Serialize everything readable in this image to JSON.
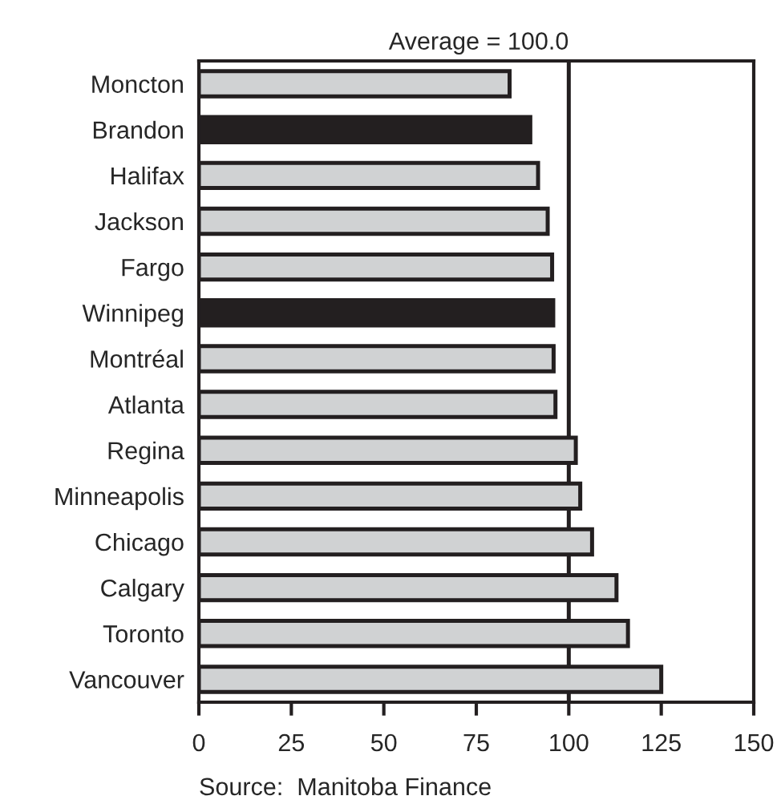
{
  "chart_data": {
    "type": "bar",
    "orientation": "horizontal",
    "categories": [
      "Moncton",
      "Brandon",
      "Halifax",
      "Jackson",
      "Fargo",
      "Winnipeg",
      "Montréal",
      "Atlanta",
      "Regina",
      "Minneapolis",
      "Chicago",
      "Calgary",
      "Toronto",
      "Vancouver"
    ],
    "values": [
      84,
      89.6,
      91.7,
      94.3,
      95.5,
      95.8,
      95.9,
      96.4,
      101.9,
      103.1,
      106.3,
      112.9,
      116,
      125
    ],
    "colors": [
      "#d0d2d3",
      "#231f20",
      "#d0d2d3",
      "#d0d2d3",
      "#d0d2d3",
      "#231f20",
      "#d0d2d3",
      "#d0d2d3",
      "#d0d2d3",
      "#d0d2d3",
      "#d0d2d3",
      "#d0d2d3",
      "#d0d2d3",
      "#d0d2d3"
    ],
    "xlim": [
      0,
      150
    ],
    "xticks": [
      0,
      25,
      50,
      75,
      100,
      125,
      150
    ],
    "ref_lines": [
      {
        "axis": "x",
        "value": 100,
        "label": "Average = 100.0",
        "color": "#231f20"
      }
    ],
    "annotations": [
      "Source:  Manitoba Finance"
    ],
    "grid": false,
    "legend": false
  }
}
